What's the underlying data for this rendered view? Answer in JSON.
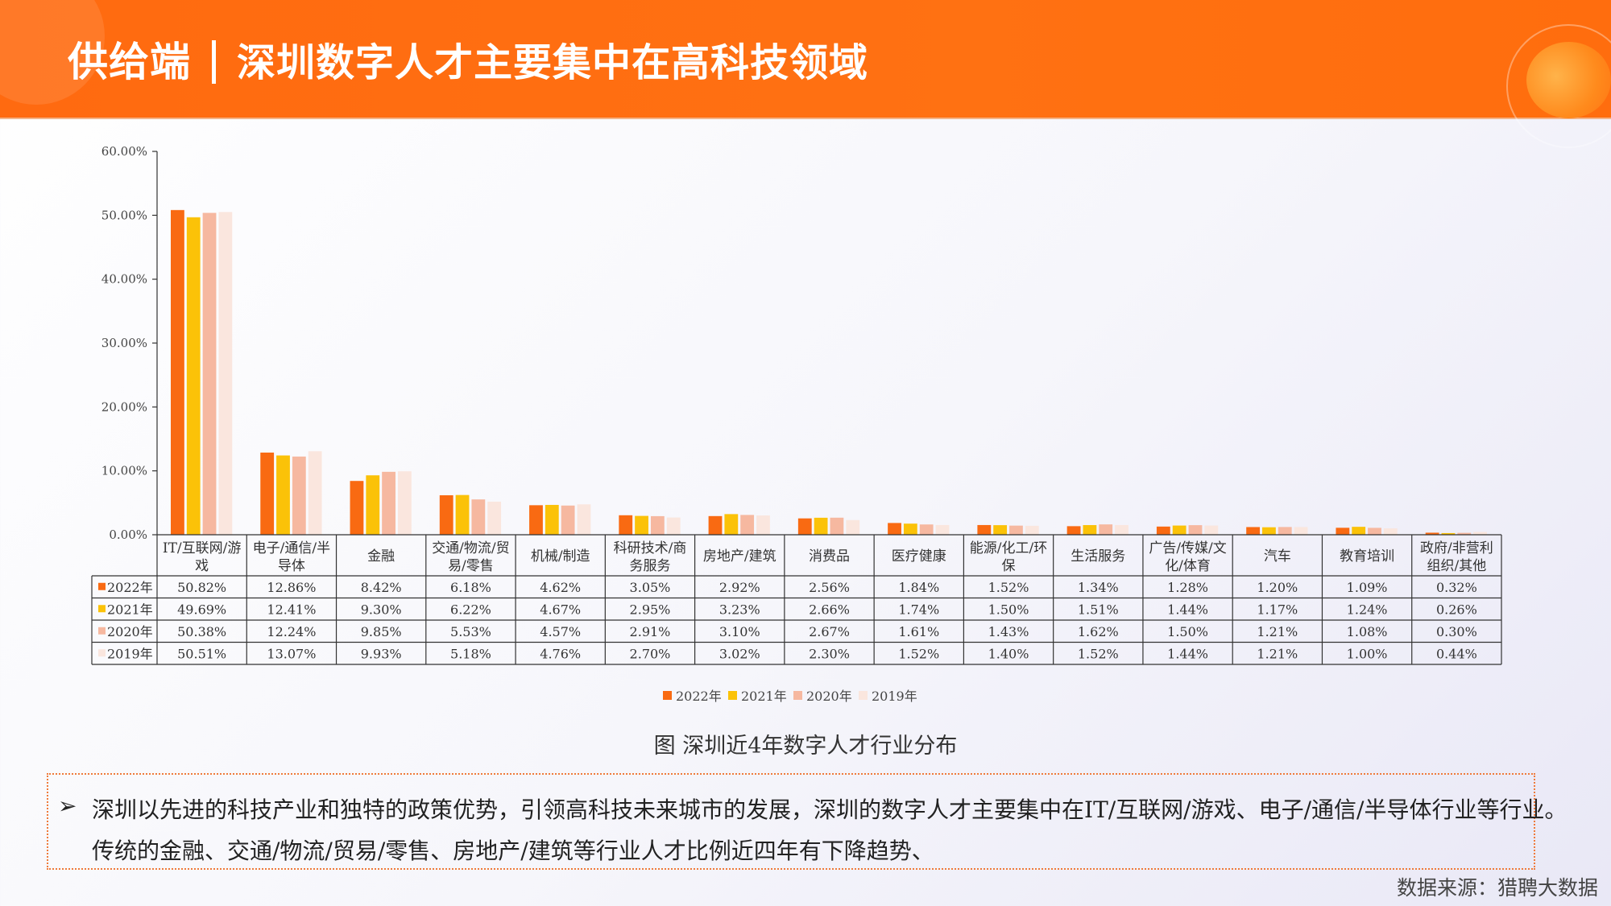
{
  "header": {
    "title_main": "供给端",
    "title_sub": "深圳数字人才主要集中在高科技领域",
    "bg_color": "#ff6a10"
  },
  "chart_data": {
    "type": "bar",
    "title": "",
    "ylim": [
      0,
      60
    ],
    "yticks": [
      "0.00%",
      "10.00%",
      "20.00%",
      "30.00%",
      "40.00%",
      "50.00%",
      "60.00%"
    ],
    "categories": [
      [
        "IT/互联网/游",
        "戏"
      ],
      [
        "电子/通信/半",
        "导体"
      ],
      [
        "金融"
      ],
      [
        "交通/物流/贸",
        "易/零售"
      ],
      [
        "机械/制造"
      ],
      [
        "科研技术/商",
        "务服务"
      ],
      [
        "房地产/建筑"
      ],
      [
        "消费品"
      ],
      [
        "医疗健康"
      ],
      [
        "能源/化工/环",
        "保"
      ],
      [
        "生活服务"
      ],
      [
        "广告/传媒/文",
        "化/体育"
      ],
      [
        "汽车"
      ],
      [
        "教育培训"
      ],
      [
        "政府/非营利",
        "组织/其他"
      ]
    ],
    "series": [
      {
        "name": "2022年",
        "color": "#f96a12",
        "values": [
          50.82,
          12.86,
          8.42,
          6.18,
          4.62,
          3.05,
          2.92,
          2.56,
          1.84,
          1.52,
          1.34,
          1.28,
          1.2,
          1.09,
          0.32
        ],
        "labels": [
          "50.82%",
          "12.86%",
          "8.42%",
          "6.18%",
          "4.62%",
          "3.05%",
          "2.92%",
          "2.56%",
          "1.84%",
          "1.52%",
          "1.34%",
          "1.28%",
          "1.20%",
          "1.09%",
          "0.32%"
        ]
      },
      {
        "name": "2021年",
        "color": "#fbc208",
        "values": [
          49.69,
          12.41,
          9.3,
          6.22,
          4.67,
          2.95,
          3.23,
          2.66,
          1.74,
          1.5,
          1.51,
          1.44,
          1.17,
          1.24,
          0.26
        ],
        "labels": [
          "49.69%",
          "12.41%",
          "9.30%",
          "6.22%",
          "4.67%",
          "2.95%",
          "3.23%",
          "2.66%",
          "1.74%",
          "1.50%",
          "1.51%",
          "1.44%",
          "1.17%",
          "1.24%",
          "0.26%"
        ]
      },
      {
        "name": "2020年",
        "color": "#f6b8a0",
        "values": [
          50.38,
          12.24,
          9.85,
          5.53,
          4.57,
          2.91,
          3.1,
          2.67,
          1.61,
          1.43,
          1.62,
          1.5,
          1.21,
          1.08,
          0.3
        ],
        "labels": [
          "50.38%",
          "12.24%",
          "9.85%",
          "5.53%",
          "4.57%",
          "2.91%",
          "3.10%",
          "2.67%",
          "1.61%",
          "1.43%",
          "1.62%",
          "1.50%",
          "1.21%",
          "1.08%",
          "0.30%"
        ]
      },
      {
        "name": "2019年",
        "color": "#fae6de",
        "values": [
          50.51,
          13.07,
          9.93,
          5.18,
          4.76,
          2.7,
          3.02,
          2.3,
          1.52,
          1.4,
          1.52,
          1.44,
          1.21,
          1.0,
          0.44
        ],
        "labels": [
          "50.51%",
          "13.07%",
          "9.93%",
          "5.18%",
          "4.76%",
          "2.70%",
          "3.02%",
          "2.30%",
          "1.52%",
          "1.40%",
          "1.52%",
          "1.44%",
          "1.21%",
          "1.00%",
          "0.44%"
        ]
      }
    ],
    "legend_position": "bottom",
    "grid": false
  },
  "caption": "图 深圳近4年数字人才行业分布",
  "note": {
    "bullet": "➢",
    "text": "深圳以先进的科技产业和独特的政策优势，引领高科技未来城市的发展，深圳的数字人才主要集中在IT/互联网/游戏、电子/通信/半导体行业等行业。传统的金融、交通/物流/贸易/零售、房地产/建筑等行业人才比例近四年有下降趋势、"
  },
  "source": "数据来源：猎聘大数据"
}
